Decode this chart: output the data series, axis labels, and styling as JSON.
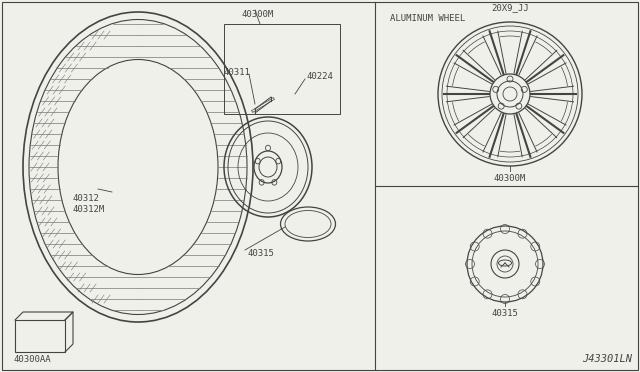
{
  "bg_color": "#f0f0eb",
  "line_color": "#444444",
  "title": "ALUMINUM WHEEL",
  "label_20x9": "20X9_JJ",
  "label_40300M_top": "40300M",
  "label_40300M_bot": "40300M",
  "label_40315_right": "40315",
  "label_40311": "40311",
  "label_40224": "40224",
  "label_40312": "40312\n40312M",
  "label_40300AA": "40300AA",
  "label_40315_left": "40315",
  "label_J43301LN": "J43301LN"
}
